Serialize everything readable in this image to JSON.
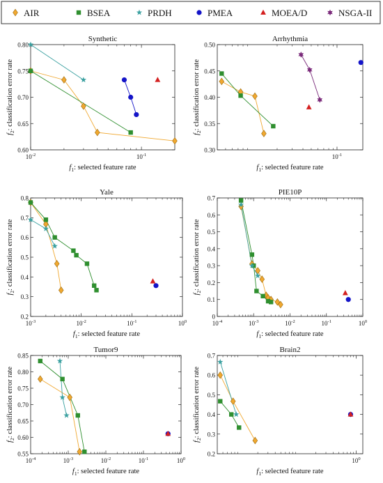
{
  "legend": {
    "entries": [
      {
        "name": "AIR",
        "color": "#f0a830",
        "marker": "diamond"
      },
      {
        "name": "BSEA",
        "color": "#2f8f2f",
        "marker": "square"
      },
      {
        "name": "PRDH",
        "color": "#3aa0a0",
        "marker": "star"
      },
      {
        "name": "PMEA",
        "color": "#1414c8",
        "marker": "circle"
      },
      {
        "name": "MOEA/D",
        "color": "#d42020",
        "marker": "triangle"
      },
      {
        "name": "NSGA-II",
        "color": "#7a2a7a",
        "marker": "hexagram"
      }
    ]
  },
  "chart_data": [
    {
      "type": "scatter",
      "title": "Synthetic",
      "xscale": "log",
      "xlabel": "f1: selected feature rate",
      "ylabel": "f2: classification error rate",
      "xlim": [
        0.01,
        0.2
      ],
      "ylim": [
        0.6,
        0.8
      ],
      "xticks": [
        {
          "v": 0.01,
          "label": "10^-2"
        },
        {
          "v": 0.1,
          "label": "10^-1"
        }
      ],
      "yticks": [
        0.6,
        0.65,
        0.7,
        0.75,
        0.8
      ],
      "ytick_decimals": 2,
      "series": [
        {
          "name": "AIR",
          "x": [
            0.01,
            0.02,
            0.03,
            0.04,
            0.2
          ],
          "y": [
            0.75,
            0.733,
            0.683,
            0.633,
            0.617
          ]
        },
        {
          "name": "BSEA",
          "x": [
            0.01,
            0.08
          ],
          "y": [
            0.75,
            0.633
          ]
        },
        {
          "name": "PRDH",
          "x": [
            0.01,
            0.03
          ],
          "y": [
            0.8,
            0.733
          ]
        },
        {
          "name": "PMEA",
          "x": [
            0.07,
            0.08,
            0.09
          ],
          "y": [
            0.733,
            0.7,
            0.667
          ]
        },
        {
          "name": "MOEA/D",
          "x": [
            0.14
          ],
          "y": [
            0.733
          ]
        }
      ]
    },
    {
      "type": "scatter",
      "title": "Arrhythmia",
      "xscale": "log",
      "xlabel": "f1: selected feature rate",
      "ylabel": "f2: classification error rate",
      "xlim": [
        0.004,
        0.2
      ],
      "ylim": [
        0.3,
        0.5
      ],
      "xticks": [
        {
          "v": 0.1,
          "label": "10^-1"
        }
      ],
      "yticks": [
        0.3,
        0.35,
        0.4,
        0.45,
        0.5
      ],
      "ytick_decimals": 2,
      "series": [
        {
          "name": "AIR",
          "x": [
            0.0045,
            0.0075,
            0.011,
            0.014
          ],
          "y": [
            0.43,
            0.41,
            0.402,
            0.331
          ]
        },
        {
          "name": "BSEA",
          "x": [
            0.0045,
            0.0075,
            0.018
          ],
          "y": [
            0.445,
            0.403,
            0.345
          ]
        },
        {
          "name": "PMEA",
          "x": [
            0.19
          ],
          "y": [
            0.466
          ]
        },
        {
          "name": "MOEA/D",
          "x": [
            0.047
          ],
          "y": [
            0.381
          ]
        },
        {
          "name": "NSGA-II",
          "x": [
            0.038,
            0.048,
            0.063
          ],
          "y": [
            0.481,
            0.452,
            0.395
          ]
        }
      ]
    },
    {
      "type": "scatter",
      "title": "Yale",
      "xscale": "log",
      "xlabel": "f1: selected feature rate",
      "ylabel": "f2: classification error rate",
      "xlim": [
        0.001,
        1
      ],
      "ylim": [
        0.2,
        0.8
      ],
      "xticks": [
        {
          "v": 0.001,
          "label": "10^-3"
        },
        {
          "v": 0.01,
          "label": "10^-2"
        },
        {
          "v": 0.1,
          "label": "10^-1"
        },
        {
          "v": 1,
          "label": "10^0"
        }
      ],
      "yticks": [
        0.2,
        0.3,
        0.4,
        0.5,
        0.6,
        0.7,
        0.8
      ],
      "ytick_decimals": 1,
      "series": [
        {
          "name": "AIR",
          "x": [
            0.001,
            0.002,
            0.0033,
            0.004
          ],
          "y": [
            0.777,
            0.667,
            0.467,
            0.333
          ]
        },
        {
          "name": "BSEA",
          "x": [
            0.001,
            0.002,
            0.003,
            0.007,
            0.008,
            0.013,
            0.018,
            0.02
          ],
          "y": [
            0.777,
            0.69,
            0.6,
            0.533,
            0.51,
            0.467,
            0.356,
            0.333
          ]
        },
        {
          "name": "PRDH",
          "x": [
            0.001,
            0.002,
            0.003
          ],
          "y": [
            0.69,
            0.644,
            0.556
          ]
        },
        {
          "name": "PMEA",
          "x": [
            0.3
          ],
          "y": [
            0.356
          ]
        },
        {
          "name": "MOEA/D",
          "x": [
            0.26
          ],
          "y": [
            0.378
          ]
        }
      ]
    },
    {
      "type": "scatter",
      "title": "PIE10P",
      "xscale": "log",
      "xlabel": "f1: selected feature rate",
      "ylabel": "f2: classification error rate",
      "xlim": [
        0.0001,
        1
      ],
      "ylim": [
        0,
        0.7
      ],
      "xticks": [
        {
          "v": 0.0001,
          "label": "10^-4"
        },
        {
          "v": 0.001,
          "label": "10^-3"
        },
        {
          "v": 0.01,
          "label": "10^-2"
        },
        {
          "v": 0.1,
          "label": "10^-1"
        },
        {
          "v": 1,
          "label": "10^0"
        }
      ],
      "yticks": [
        0,
        0.1,
        0.2,
        0.3,
        0.4,
        0.5,
        0.6,
        0.7
      ],
      "ytick_decimals": 1,
      "series": [
        {
          "name": "AIR",
          "x": [
            0.00045,
            0.0009,
            0.0013,
            0.0017,
            0.0022,
            0.0025,
            0.003,
            0.0045,
            0.0055
          ],
          "y": [
            0.65,
            0.31,
            0.27,
            0.22,
            0.125,
            0.11,
            0.1,
            0.085,
            0.07
          ]
        },
        {
          "name": "BSEA",
          "x": [
            0.00045,
            0.0009,
            0.001,
            0.0012,
            0.0018,
            0.0025,
            0.003
          ],
          "y": [
            0.685,
            0.365,
            0.3,
            0.15,
            0.12,
            0.09,
            0.085
          ]
        },
        {
          "name": "PRDH",
          "x": [
            0.00045,
            0.0009,
            0.0013
          ],
          "y": [
            0.66,
            0.3,
            0.24
          ]
        },
        {
          "name": "PMEA",
          "x": [
            0.4
          ],
          "y": [
            0.1
          ]
        },
        {
          "name": "MOEA/D",
          "x": [
            0.33
          ],
          "y": [
            0.138
          ]
        }
      ]
    },
    {
      "type": "scatter",
      "title": "Tumor9",
      "xscale": "log",
      "xlabel": "f1: selected feature rate",
      "ylabel": "f2: classification error rate",
      "xlim": [
        0.0001,
        1
      ],
      "ylim": [
        0.55,
        0.85
      ],
      "xticks": [
        {
          "v": 0.0001,
          "label": "10^-4"
        },
        {
          "v": 0.001,
          "label": "10^-3"
        },
        {
          "v": 0.01,
          "label": "10^-2"
        },
        {
          "v": 0.1,
          "label": "10^-1"
        },
        {
          "v": 1,
          "label": "10^0"
        }
      ],
      "yticks": [
        0.55,
        0.6,
        0.65,
        0.7,
        0.75,
        0.8,
        0.85
      ],
      "ytick_decimals": 2,
      "series": [
        {
          "name": "AIR",
          "x": [
            0.00018,
            0.0011,
            0.002
          ],
          "y": [
            0.778,
            0.722,
            0.556
          ]
        },
        {
          "name": "BSEA",
          "x": [
            0.00018,
            0.0007,
            0.0018,
            0.0027
          ],
          "y": [
            0.833,
            0.778,
            0.667,
            0.556
          ]
        },
        {
          "name": "PRDH",
          "x": [
            0.0006,
            0.0007,
            0.0009
          ],
          "y": [
            0.833,
            0.722,
            0.667
          ]
        },
        {
          "name": "PMEA",
          "x": [
            0.45
          ],
          "y": [
            0.611
          ]
        },
        {
          "name": "MOEA/D",
          "x": [
            0.45
          ],
          "y": [
            0.611
          ]
        }
      ]
    },
    {
      "type": "scatter",
      "title": "Brain2",
      "xscale": "log",
      "xlabel": "f1: selected feature rate",
      "ylabel": "f2: classification error rate",
      "xlim": [
        0.004,
        1.3
      ],
      "ylim": [
        0.2,
        0.7
      ],
      "xticks": [
        {
          "v": 1,
          "label": "10^0"
        }
      ],
      "yticks": [
        0.2,
        0.3,
        0.4,
        0.5,
        0.6,
        0.7
      ],
      "ytick_decimals": 1,
      "series": [
        {
          "name": "AIR",
          "x": [
            0.0045,
            0.0075,
            0.018
          ],
          "y": [
            0.6,
            0.467,
            0.267
          ]
        },
        {
          "name": "BSEA",
          "x": [
            0.0045,
            0.007,
            0.0095
          ],
          "y": [
            0.467,
            0.4,
            0.333
          ]
        },
        {
          "name": "PRDH",
          "x": [
            0.0045,
            0.0085
          ],
          "y": [
            0.667,
            0.4
          ]
        },
        {
          "name": "PMEA",
          "x": [
            0.8
          ],
          "y": [
            0.4
          ]
        },
        {
          "name": "MOEA/D",
          "x": [
            0.8
          ],
          "y": [
            0.4
          ]
        }
      ]
    }
  ]
}
